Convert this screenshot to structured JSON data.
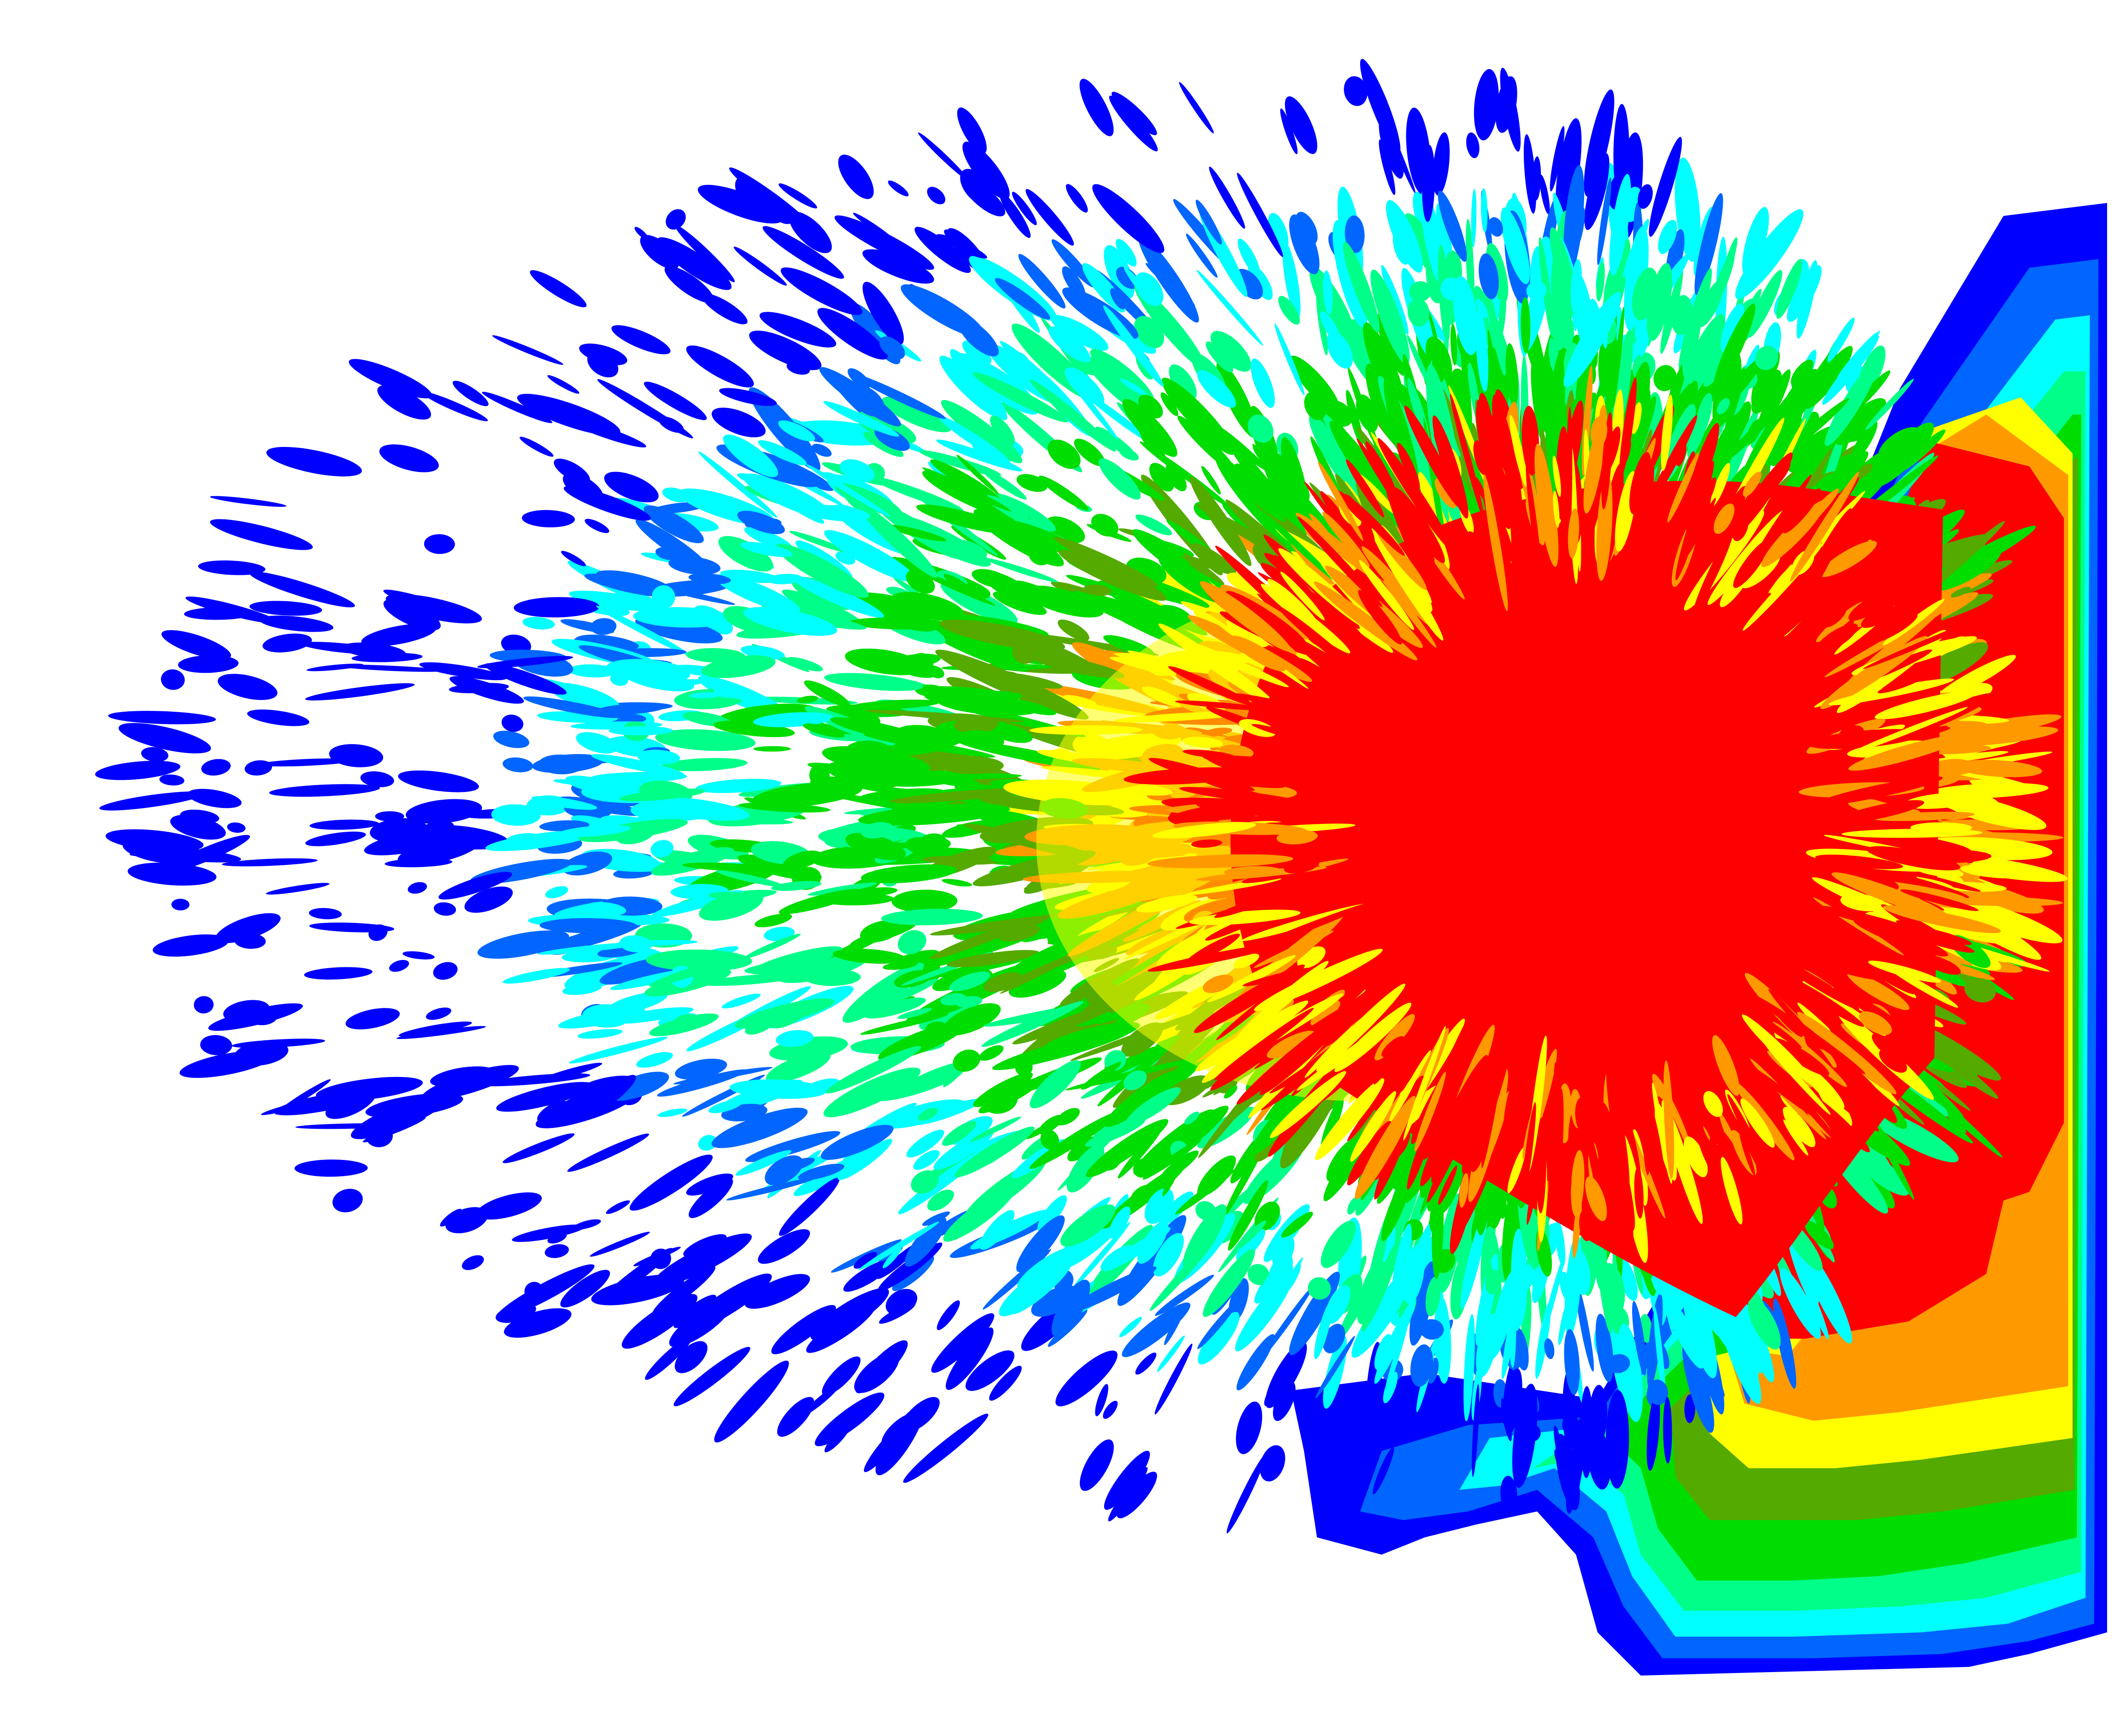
{
  "image": {
    "subject": "contour-colored-point-cloud",
    "palette": [
      "#0000ff",
      "#0066ff",
      "#00ffff",
      "#00ff88",
      "#00dd00",
      "#55aa00",
      "#ffff00",
      "#ff9900",
      "#ff0000"
    ],
    "background": "#ffffff",
    "band_labels": [
      "blue",
      "azure",
      "cyan",
      "spring-green",
      "green",
      "olive-green",
      "yellow",
      "orange",
      "red"
    ]
  }
}
